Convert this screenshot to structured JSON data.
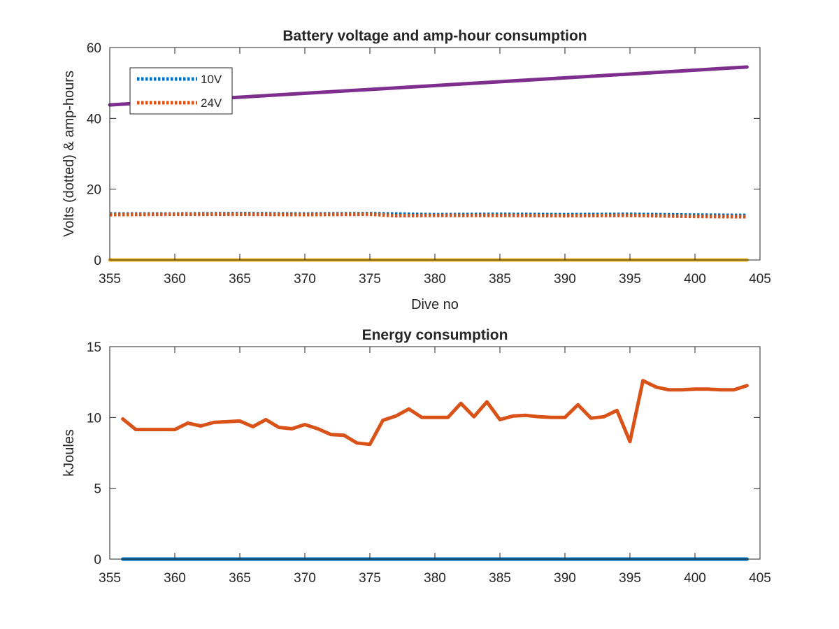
{
  "chart_data": [
    {
      "type": "line",
      "title": "Battery voltage and amp-hour consumption",
      "xlabel": "Dive no",
      "ylabel": "Volts (dotted) & amp-hours",
      "xlim": [
        355,
        405
      ],
      "ylim": [
        0,
        60
      ],
      "xticks": [
        "355",
        "360",
        "365",
        "370",
        "375",
        "380",
        "385",
        "390",
        "395",
        "400",
        "405"
      ],
      "yticks": [
        "0",
        "20",
        "40",
        "60"
      ],
      "grid": false,
      "legend_position": "top-left",
      "series": [
        {
          "name": "10V",
          "color": "#0072BD",
          "style": "dotted",
          "x": [
            355,
            360,
            365,
            370,
            375,
            380,
            385,
            390,
            395,
            400,
            404
          ],
          "y": [
            13.0,
            13.0,
            13.1,
            13.0,
            13.1,
            12.8,
            12.9,
            12.8,
            12.9,
            12.7,
            12.6
          ]
        },
        {
          "name": "24V",
          "color": "#D95319",
          "style": "dotted",
          "x": [
            355,
            360,
            365,
            370,
            375,
            377,
            380,
            385,
            390,
            395,
            400,
            404
          ],
          "y": [
            12.8,
            12.9,
            12.9,
            12.8,
            12.9,
            12.5,
            12.6,
            12.6,
            12.5,
            12.6,
            12.3,
            12.2
          ]
        },
        {
          "color": "#7E2F8E",
          "style": "solid",
          "x": [
            355,
            404
          ],
          "y": [
            43.8,
            54.5
          ]
        },
        {
          "color": "#EDB120",
          "style": "solid",
          "x": [
            355,
            404
          ],
          "y": [
            0,
            0
          ]
        }
      ]
    },
    {
      "type": "line",
      "title": "Energy consumption",
      "xlabel": "",
      "ylabel": "kJoules",
      "xlim": [
        355,
        405
      ],
      "ylim": [
        0,
        15
      ],
      "xticks": [
        "355",
        "360",
        "365",
        "370",
        "375",
        "380",
        "385",
        "390",
        "395",
        "400",
        "405"
      ],
      "yticks": [
        "0",
        "5",
        "10",
        "15"
      ],
      "grid": false,
      "series": [
        {
          "color": "#D95319",
          "style": "solid",
          "x": [
            356,
            357,
            358,
            359,
            360,
            361,
            362,
            363,
            364,
            365,
            366,
            367,
            368,
            369,
            370,
            371,
            372,
            373,
            374,
            375,
            376,
            377,
            378,
            379,
            380,
            381,
            382,
            383,
            384,
            385,
            386,
            387,
            388,
            389,
            390,
            391,
            392,
            393,
            394,
            395,
            396,
            397,
            398,
            399,
            400,
            401,
            402,
            403,
            404
          ],
          "y": [
            9.9,
            9.15,
            9.15,
            9.15,
            9.15,
            9.6,
            9.4,
            9.65,
            9.7,
            9.75,
            9.35,
            9.85,
            9.3,
            9.2,
            9.5,
            9.2,
            8.8,
            8.75,
            8.2,
            8.1,
            9.8,
            10.1,
            10.6,
            10.0,
            10.0,
            10.0,
            11.0,
            10.05,
            11.1,
            9.85,
            10.1,
            10.15,
            10.05,
            10.0,
            10.0,
            10.9,
            9.95,
            10.05,
            10.5,
            8.3,
            12.6,
            12.15,
            11.95,
            11.95,
            12.0,
            12.0,
            11.95,
            11.95,
            12.25
          ]
        },
        {
          "color": "#0072BD",
          "style": "solid",
          "x": [
            356,
            404
          ],
          "y": [
            0,
            0
          ]
        }
      ]
    }
  ]
}
